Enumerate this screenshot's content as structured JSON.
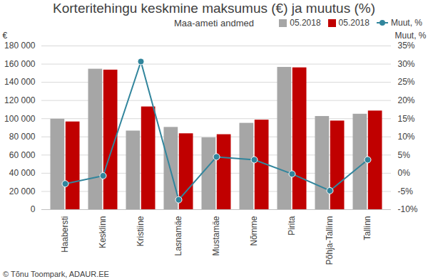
{
  "chart_data": {
    "type": "bar",
    "title": "Korteritehingu keskmine maksumus (€) ja muutus (%)",
    "subtitle": "Maa-ameti andmed",
    "caption": "© Tõnu Toompark, ADAUR.EE",
    "y_label": "€",
    "y2_label": "Muut, %",
    "categories": [
      "Haabersti",
      "Kesklinn",
      "Kristiine",
      "Lasnamäe",
      "Mustamäe",
      "Nõmme",
      "Pirita",
      "Põhja-Tallinn",
      "Tallinn"
    ],
    "series": [
      {
        "name": "05.2018",
        "color": "#a6a6a6",
        "values": [
          99500,
          154500,
          86500,
          90500,
          79000,
          95000,
          156500,
          102500,
          105000
        ]
      },
      {
        "name": "05.2018",
        "color": "#c00000",
        "values": [
          96500,
          153500,
          113000,
          83500,
          82500,
          98500,
          156000,
          97500,
          108500
        ]
      },
      {
        "name": "Muut, %",
        "type": "line",
        "axis": "y2",
        "color": "#31859c",
        "marker": "circle",
        "values": [
          -2.9,
          -0.7,
          30.7,
          -7.3,
          4.5,
          3.7,
          -0.2,
          -4.8,
          3.7
        ]
      }
    ],
    "ylim": [
      0,
      180000
    ],
    "yticks": [
      0,
      {
        "value": 20000,
        "label": "20 000"
      },
      {
        "value": 40000,
        "label": "40 000"
      },
      {
        "value": 60000,
        "label": "60 000"
      },
      {
        "value": 80000,
        "label": "80 000"
      },
      {
        "value": 100000,
        "label": "100 000"
      },
      {
        "value": 120000,
        "label": "120 000"
      },
      {
        "value": 140000,
        "label": "140 000"
      },
      {
        "value": 160000,
        "label": "160 000"
      },
      {
        "value": 180000,
        "label": "180 000"
      }
    ],
    "y2lim": [
      -10,
      35
    ],
    "y2ticks": [
      {
        "value": -10,
        "label": "-10%"
      },
      {
        "value": -5,
        "label": "-5%"
      },
      {
        "value": 0,
        "label": "0%"
      },
      {
        "value": 5,
        "label": "5%"
      },
      {
        "value": 10,
        "label": "10%"
      },
      {
        "value": 15,
        "label": "15%"
      },
      {
        "value": 20,
        "label": "20%"
      },
      {
        "value": 25,
        "label": "25%"
      },
      {
        "value": 30,
        "label": "30%"
      },
      {
        "value": 35,
        "label": "35%"
      }
    ],
    "grid": true,
    "legend": "top-right"
  }
}
